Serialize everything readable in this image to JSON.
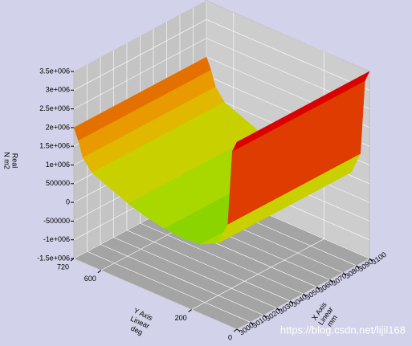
{
  "chart_data": {
    "type": "surface",
    "z_label": [
      "Real",
      "N m2"
    ],
    "y_label": [
      "Y Axis",
      "Linear",
      "deg"
    ],
    "x_label": [
      "X Axis",
      "Linear",
      "mm"
    ],
    "watermark": "https://blog.csdn.net/lijil168",
    "ylim": [
      0,
      720
    ],
    "yticks": [
      720,
      600,
      200,
      0
    ],
    "xlim": [
      3000,
      3100
    ],
    "xticks": [
      3000,
      3010,
      3020,
      3030,
      3040,
      3050,
      3060,
      3070,
      3080,
      3090,
      3100
    ],
    "zlim": [
      -1500000,
      3500000
    ],
    "zticks": [
      {
        "value": 3500000,
        "label": "3.5e+006"
      },
      {
        "value": 3000000,
        "label": "3e+006"
      },
      {
        "value": 2500000,
        "label": "2.5e+006"
      },
      {
        "value": 2000000,
        "label": "2e+006"
      },
      {
        "value": 1500000,
        "label": "1.5e+006"
      },
      {
        "value": 1000000,
        "label": "1e+006"
      },
      500000,
      0,
      -500000,
      {
        "value": -1000000,
        "label": "-1e+006"
      },
      {
        "value": -1500000,
        "label": "-1.5e+006"
      }
    ],
    "grid": true,
    "colors": [
      "#62a800",
      "#74c000",
      "#8cd400",
      "#a8d800",
      "#c8d000",
      "#e0b800",
      "#e89a00",
      "#e47000",
      "#de3c00",
      "#dc0000"
    ],
    "surface": {
      "y": [
        0,
        20,
        40,
        80,
        160,
        240,
        320,
        400,
        480,
        560,
        640,
        680,
        700,
        720
      ],
      "z": [
        3500000,
        3200000,
        1200000,
        600000,
        350000,
        300000,
        350000,
        450000,
        600000,
        800000,
        1000000,
        1300000,
        1700000,
        2000000
      ]
    }
  }
}
